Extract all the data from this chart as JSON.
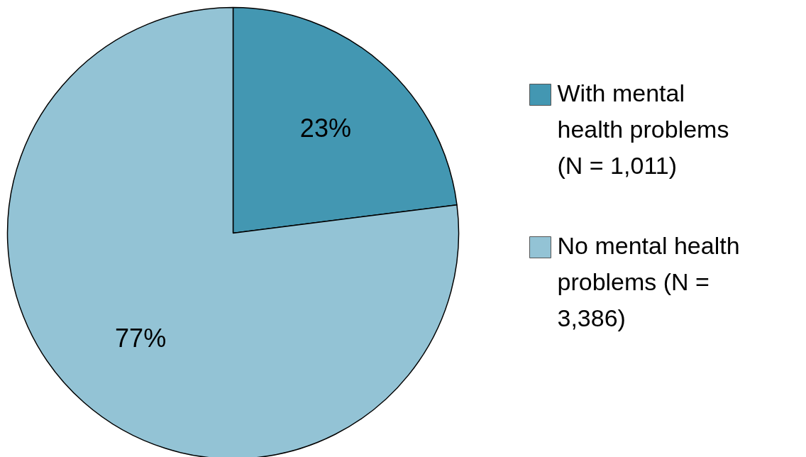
{
  "chart_data": {
    "type": "pie",
    "categories": [
      "With mental health problems (N = 1,011)",
      "No mental health problems (N = 3,386)"
    ],
    "values": [
      23,
      77
    ],
    "value_labels": [
      "23%",
      "77%"
    ],
    "colors": [
      "#4397b2",
      "#93c3d5"
    ],
    "legend": "right"
  }
}
